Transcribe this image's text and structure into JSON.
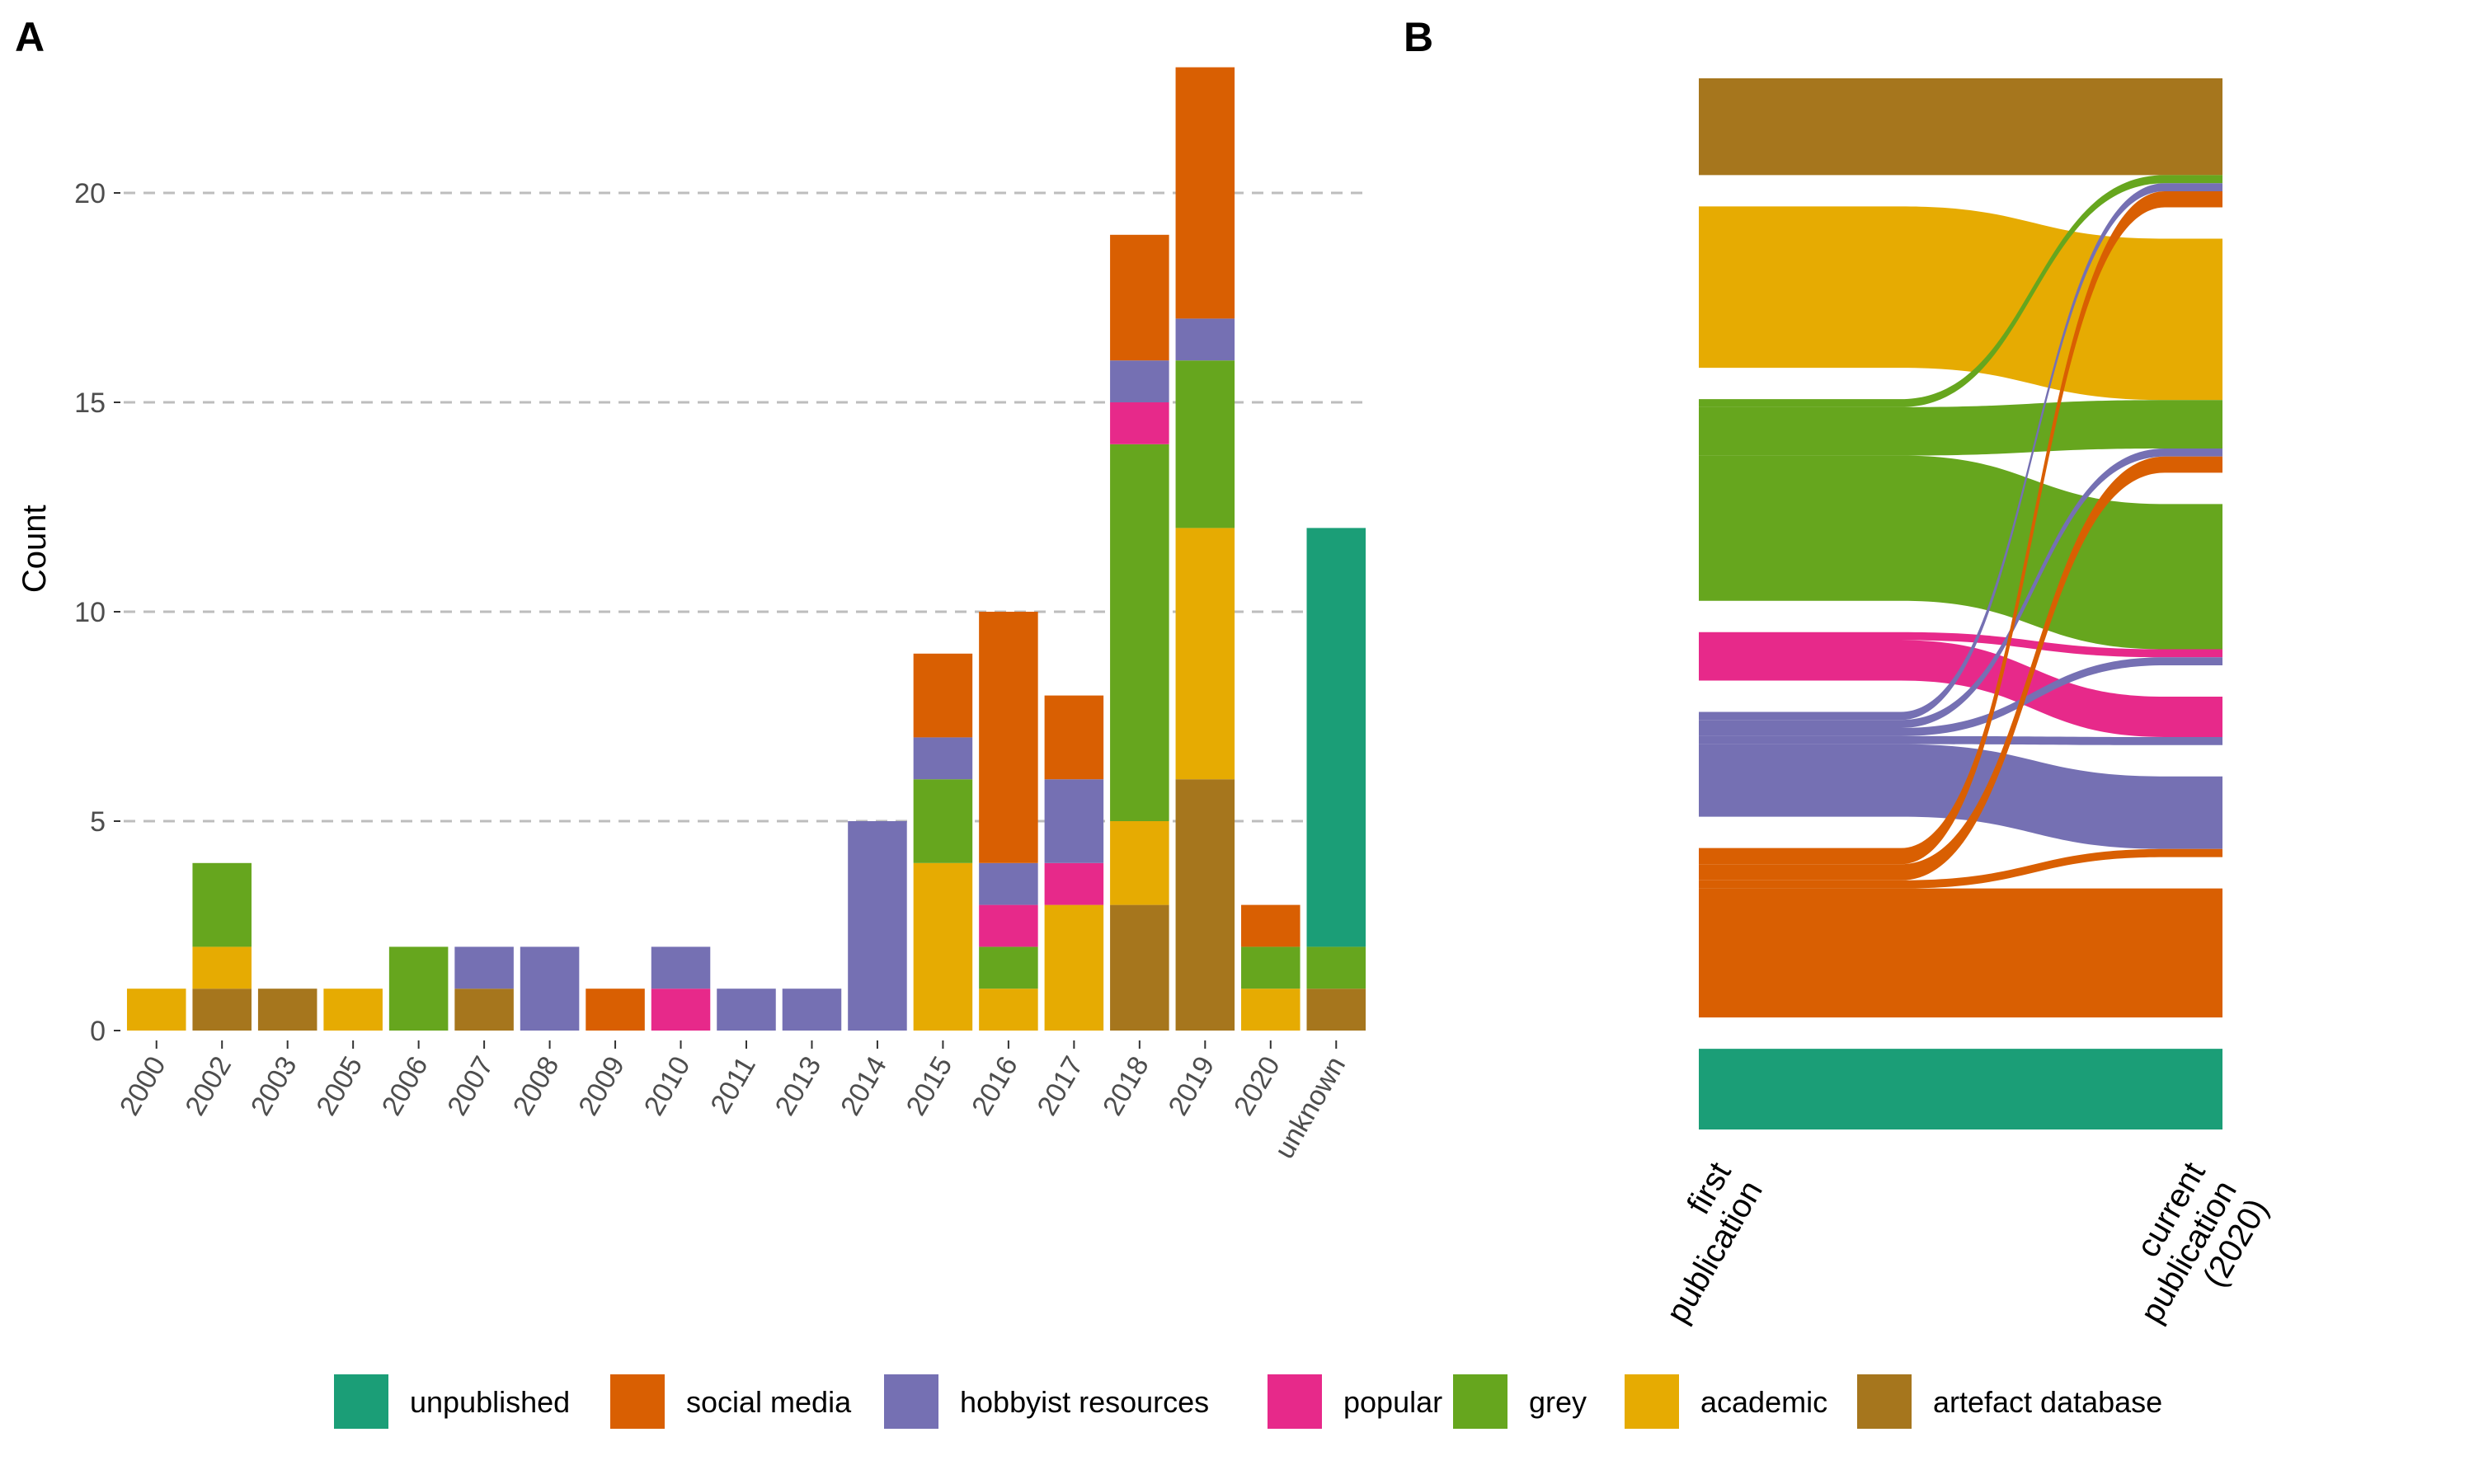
{
  "panels": {
    "a_label": "A",
    "b_label": "B"
  },
  "colors": {
    "unpublished": "#1b9e77",
    "social media": "#d95f02",
    "hobbyist resources": "#7570b3",
    "popular": "#e7298a",
    "grey": "#66a61e",
    "academic": "#e6ab02",
    "artefact database": "#a6761d"
  },
  "legend": [
    "unpublished",
    "social media",
    "hobbyist resources",
    "popular",
    "grey",
    "academic",
    "artefact database"
  ],
  "chart_data": [
    {
      "type": "bar",
      "stacked": true,
      "panel": "A",
      "ylabel": "Count",
      "ylim": [
        0,
        23
      ],
      "yticks": [
        0,
        5,
        10,
        15,
        20
      ],
      "grid": "horizontal dashed",
      "categories": [
        "2000",
        "2002",
        "2003",
        "2005",
        "2006",
        "2007",
        "2008",
        "2009",
        "2010",
        "2011",
        "2013",
        "2014",
        "2015",
        "2016",
        "2017",
        "2018",
        "2019",
        "2020",
        "unknown"
      ],
      "stack_order_bottom_to_top": [
        "artefact database",
        "academic",
        "grey",
        "popular",
        "hobbyist resources",
        "social media",
        "unpublished"
      ],
      "series": [
        {
          "name": "artefact database",
          "values": [
            0,
            1,
            1,
            0,
            0,
            1,
            0,
            0,
            0,
            0,
            0,
            0,
            0,
            0,
            0,
            3,
            6,
            0,
            1
          ]
        },
        {
          "name": "academic",
          "values": [
            1,
            1,
            0,
            1,
            0,
            0,
            0,
            0,
            0,
            0,
            0,
            0,
            4,
            1,
            3,
            2,
            6,
            1,
            0
          ]
        },
        {
          "name": "grey",
          "values": [
            0,
            2,
            0,
            0,
            2,
            0,
            0,
            0,
            0,
            0,
            0,
            0,
            2,
            1,
            0,
            9,
            4,
            1,
            1
          ]
        },
        {
          "name": "popular",
          "values": [
            0,
            0,
            0,
            0,
            0,
            0,
            0,
            0,
            1,
            0,
            0,
            0,
            0,
            1,
            1,
            1,
            0,
            0,
            0
          ]
        },
        {
          "name": "hobbyist resources",
          "values": [
            0,
            0,
            0,
            0,
            0,
            1,
            2,
            0,
            1,
            1,
            1,
            5,
            1,
            1,
            2,
            1,
            1,
            0,
            0
          ]
        },
        {
          "name": "social media",
          "values": [
            0,
            0,
            0,
            0,
            0,
            0,
            0,
            1,
            0,
            0,
            0,
            0,
            2,
            6,
            2,
            3,
            6,
            1,
            0
          ]
        },
        {
          "name": "unpublished",
          "values": [
            0,
            0,
            0,
            0,
            0,
            0,
            0,
            0,
            0,
            0,
            0,
            0,
            0,
            0,
            0,
            0,
            0,
            0,
            10
          ]
        }
      ]
    },
    {
      "type": "alluvial",
      "panel": "B",
      "axes": [
        "first\npublication",
        "current\npublication\n(2020)"
      ],
      "left_order_top_to_bottom": [
        "artefact database",
        "academic",
        "grey",
        "popular",
        "hobbyist resources",
        "social media",
        "unpublished"
      ],
      "right_order_top_to_bottom": [
        "artefact database",
        "academic",
        "grey",
        "popular",
        "hobbyist resources",
        "social media",
        "unpublished"
      ],
      "flows": [
        {
          "from": "artefact database",
          "to": "artefact database",
          "value": 12
        },
        {
          "from": "academic",
          "to": "academic",
          "value": 20
        },
        {
          "from": "grey",
          "to": "artefact database",
          "value": 1
        },
        {
          "from": "grey",
          "to": "academic",
          "value": 6
        },
        {
          "from": "grey",
          "to": "grey",
          "value": 18
        },
        {
          "from": "popular",
          "to": "grey",
          "value": 1
        },
        {
          "from": "popular",
          "to": "popular",
          "value": 5
        },
        {
          "from": "hobbyist resources",
          "to": "artefact database",
          "value": 1
        },
        {
          "from": "hobbyist resources",
          "to": "academic",
          "value": 1
        },
        {
          "from": "hobbyist resources",
          "to": "grey",
          "value": 1
        },
        {
          "from": "hobbyist resources",
          "to": "popular",
          "value": 1
        },
        {
          "from": "hobbyist resources",
          "to": "hobbyist resources",
          "value": 9
        },
        {
          "from": "social media",
          "to": "artefact database",
          "value": 2
        },
        {
          "from": "social media",
          "to": "academic",
          "value": 2
        },
        {
          "from": "social media",
          "to": "hobbyist resources",
          "value": 1
        },
        {
          "from": "social media",
          "to": "social media",
          "value": 16
        },
        {
          "from": "unpublished",
          "to": "unpublished",
          "value": 10
        }
      ]
    }
  ]
}
